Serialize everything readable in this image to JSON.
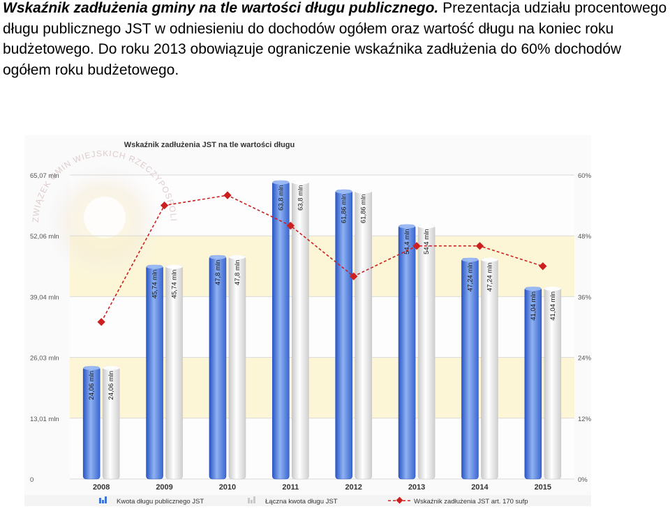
{
  "header": {
    "lead": "Wskaźnik zadłużenia gminy na tle wartości długu publicznego.",
    "body": " Prezentacja udziału procentowego długu publicznego JST w odniesieniu do dochodów ogółem oraz wartość długu na koniec roku budżetowego. Do roku 2013 obowiązuje ograniczenie wskaźnika zadłużenia do 60% dochodów ogółem roku budżetowego."
  },
  "watermark": {
    "text": "ZWIĄZEK GMIN WIEJSKICH RZECZYPOSPOLITEJ POLSKIEJ"
  },
  "chart_data": {
    "type": "bar",
    "title": "Wskaźnik zadłużenia JST na tle wartości długu",
    "categories": [
      "2008",
      "2009",
      "2010",
      "2011",
      "2012",
      "2013",
      "2014",
      "2015"
    ],
    "series": [
      {
        "name": "Kwota długu publicznego JST",
        "type": "bar",
        "values": [
          24.06,
          45.74,
          47.8,
          63.8,
          61.86,
          54.4,
          47.24,
          41.04
        ],
        "labels": [
          "24,06 mln",
          "45,74 mln",
          "47,8 mln",
          "63,8 mln",
          "61,86 mln",
          "54,4 mln",
          "47,24 mln",
          "41,04 mln"
        ],
        "color": "#3f74d6"
      },
      {
        "name": "Łączna kwota długu JST",
        "type": "bar",
        "values": [
          24.06,
          45.74,
          47.8,
          63.8,
          61.86,
          54.4,
          47.24,
          41.04
        ],
        "labels": [
          "24,06 mln",
          "45,74 mln",
          "47,8 mln",
          "63,8 mln",
          "61,86 mln",
          "54,4 mln",
          "47,24 mln",
          "41,04 mln"
        ],
        "color": "#e2e2e2"
      },
      {
        "name": "Wskaźnik zadłużenia JST art. 170 sufp",
        "type": "line",
        "axis": "right",
        "values": [
          31,
          54,
          56,
          50,
          40,
          46,
          46,
          42
        ],
        "color": "#cc1f1f"
      }
    ],
    "yaxis_left": {
      "min": 0,
      "max": 65.07,
      "ticks": [
        "0",
        "13,01 mln",
        "26,03 mln",
        "39,04 mln",
        "52,06 mln",
        "65,07 mln"
      ]
    },
    "yaxis_right": {
      "min": 0,
      "max": 60,
      "ticks": [
        "0%",
        "12%",
        "24%",
        "36%",
        "48%",
        "60%"
      ]
    },
    "grid": true,
    "legend_position": "bottom"
  }
}
